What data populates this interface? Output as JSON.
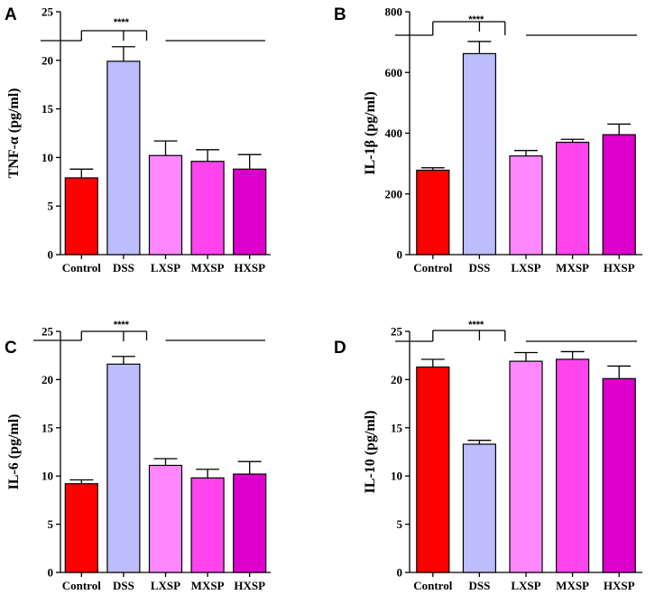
{
  "chart_data": [
    {
      "panel": "A",
      "type": "bar",
      "title": "",
      "xlabel": "",
      "ylabel": "TNF-α (pg/ml)",
      "categories": [
        "Control",
        "DSS",
        "LXSP",
        "MXSP",
        "HXSP"
      ],
      "values": [
        7.9,
        19.9,
        10.2,
        9.6,
        8.8
      ],
      "errors": [
        0.9,
        1.5,
        1.5,
        1.2,
        1.5
      ],
      "colors": [
        "#ff0000",
        "#bcbcff",
        "#ff88ff",
        "#ff44ee",
        "#dd00cc"
      ],
      "ylim": [
        0,
        25
      ],
      "yticks": [
        "0",
        "5",
        "10",
        "15",
        "20",
        "25"
      ],
      "significance": "****"
    },
    {
      "panel": "B",
      "type": "bar",
      "title": "",
      "xlabel": "",
      "ylabel": "IL-1β (pg/ml)",
      "categories": [
        "Control",
        "DSS",
        "LXSP",
        "MXSP",
        "HXSP"
      ],
      "values": [
        278,
        662,
        325,
        370,
        395
      ],
      "errors": [
        8,
        40,
        18,
        10,
        35
      ],
      "colors": [
        "#ff0000",
        "#bcbcff",
        "#ff88ff",
        "#ff44ee",
        "#dd00cc"
      ],
      "ylim": [
        0,
        800
      ],
      "yticks": [
        "0",
        "200",
        "400",
        "600",
        "800"
      ],
      "significance": "****"
    },
    {
      "panel": "C",
      "type": "bar",
      "title": "",
      "xlabel": "",
      "ylabel": "IL-6 (pg/ml)",
      "categories": [
        "Control",
        "DSS",
        "LXSP",
        "MXSP",
        "HXSP"
      ],
      "values": [
        9.2,
        21.6,
        11.1,
        9.8,
        10.2
      ],
      "errors": [
        0.4,
        0.8,
        0.7,
        0.9,
        1.3
      ],
      "colors": [
        "#ff0000",
        "#bcbcff",
        "#ff88ff",
        "#ff44ee",
        "#dd00cc"
      ],
      "ylim": [
        0,
        25
      ],
      "yticks": [
        "0",
        "5",
        "10",
        "15",
        "20",
        "25"
      ],
      "significance": "****"
    },
    {
      "panel": "D",
      "type": "bar",
      "title": "",
      "xlabel": "",
      "ylabel": "IL-10 (pg/ml)",
      "categories": [
        "Control",
        "DSS",
        "LXSP",
        "MXSP",
        "HXSP"
      ],
      "values": [
        21.3,
        13.3,
        21.9,
        22.1,
        20.1
      ],
      "errors": [
        0.8,
        0.4,
        0.9,
        0.8,
        1.3
      ],
      "colors": [
        "#ff0000",
        "#bcbcff",
        "#ff88ff",
        "#ff44ee",
        "#dd00cc"
      ],
      "ylim": [
        0,
        25
      ],
      "yticks": [
        "0",
        "5",
        "10",
        "15",
        "20",
        "25"
      ],
      "significance": "****"
    }
  ]
}
